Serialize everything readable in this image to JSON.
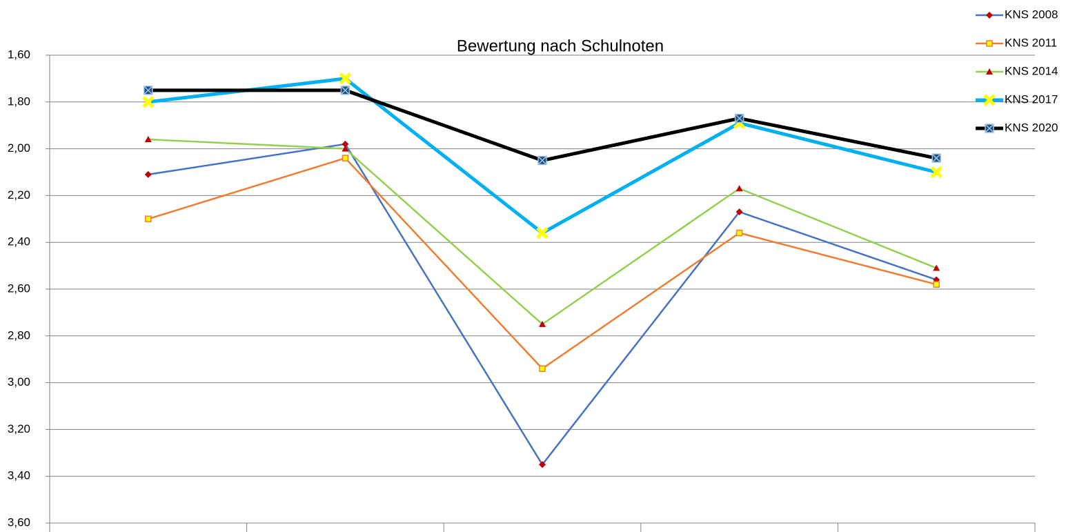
{
  "chart_data": {
    "type": "line",
    "title": "Bewertung nach Schulnoten",
    "categories": [
      null,
      null,
      null,
      null,
      null
    ],
    "series": [
      {
        "name": "KNS 2008",
        "color": "#4472c4",
        "marker_color": "#c00000",
        "values": [
          2.11,
          1.98,
          3.35,
          2.27,
          2.56
        ]
      },
      {
        "name": "KNS 2011",
        "color": "#ed7d31",
        "marker_color": "#ffff00",
        "values": [
          2.3,
          2.04,
          2.94,
          2.36,
          2.58
        ]
      },
      {
        "name": "KNS 2014",
        "color": "#92d050",
        "marker_color": "#c00000",
        "values": [
          1.96,
          2.0,
          2.75,
          2.17,
          2.51
        ]
      },
      {
        "name": "KNS 2017",
        "color": "#00b0f0",
        "marker_color": "#ffff00",
        "values": [
          1.8,
          1.7,
          2.36,
          1.89,
          2.1
        ]
      },
      {
        "name": "KNS 2020",
        "color": "#000000",
        "marker_color": "#1f4e79",
        "values": [
          1.75,
          1.75,
          2.05,
          1.87,
          2.04
        ]
      }
    ],
    "ylim": [
      1.6,
      3.6
    ],
    "y_reversed": true,
    "yticks": [
      {
        "value": 1.6,
        "label": "1,60"
      },
      {
        "value": 1.8,
        "label": "1,80"
      },
      {
        "value": 2.0,
        "label": "2,00"
      },
      {
        "value": 2.2,
        "label": "2,20"
      },
      {
        "value": 2.4,
        "label": "2,40"
      },
      {
        "value": 2.6,
        "label": "2,60"
      },
      {
        "value": 2.8,
        "label": "2,80"
      },
      {
        "value": 3.0,
        "label": "3,00"
      },
      {
        "value": 3.2,
        "label": "3,20"
      },
      {
        "value": 3.4,
        "label": "3,40"
      },
      {
        "value": 3.6,
        "label": "3,60"
      }
    ],
    "grid": true,
    "legend": "top-right"
  }
}
